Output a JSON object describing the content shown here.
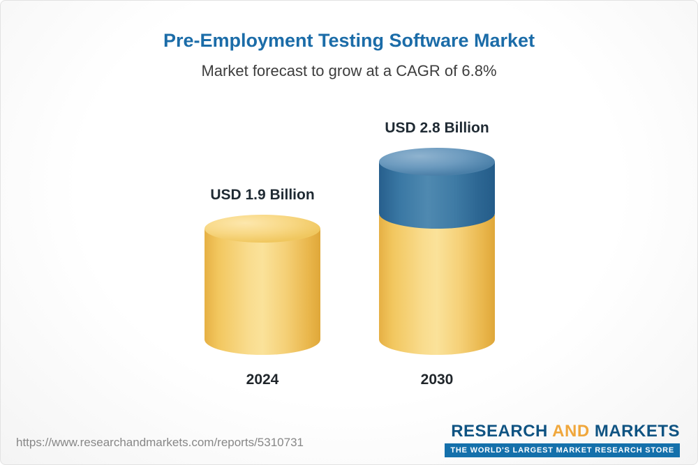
{
  "header": {
    "title": "Pre-Employment Testing Software Market",
    "subtitle": "Market forecast to grow at a CAGR of 6.8%"
  },
  "chart_data": {
    "type": "bar",
    "subtype": "3d-cylinder",
    "title": "Pre-Employment Testing Software Market",
    "subtitle": "Market forecast to grow at a CAGR of 6.8%",
    "unit": "USD Billion",
    "categories": [
      "2024",
      "2030"
    ],
    "values": [
      1.9,
      2.8
    ],
    "value_labels": [
      "USD 1.9 Billion",
      "USD 2.8 Billion"
    ],
    "cagr_percent": 6.8,
    "colors": {
      "base_segment": "#F6CF6E",
      "growth_segment": "#336F9E"
    },
    "legend": "none",
    "grid": "off"
  },
  "footer": {
    "url": "https://www.researchandmarkets.com/reports/5310731",
    "logo": {
      "research": "RESEARCH",
      "and": "AND",
      "markets": "MARKETS",
      "tagline": "THE WORLD'S LARGEST MARKET RESEARCH STORE"
    }
  }
}
